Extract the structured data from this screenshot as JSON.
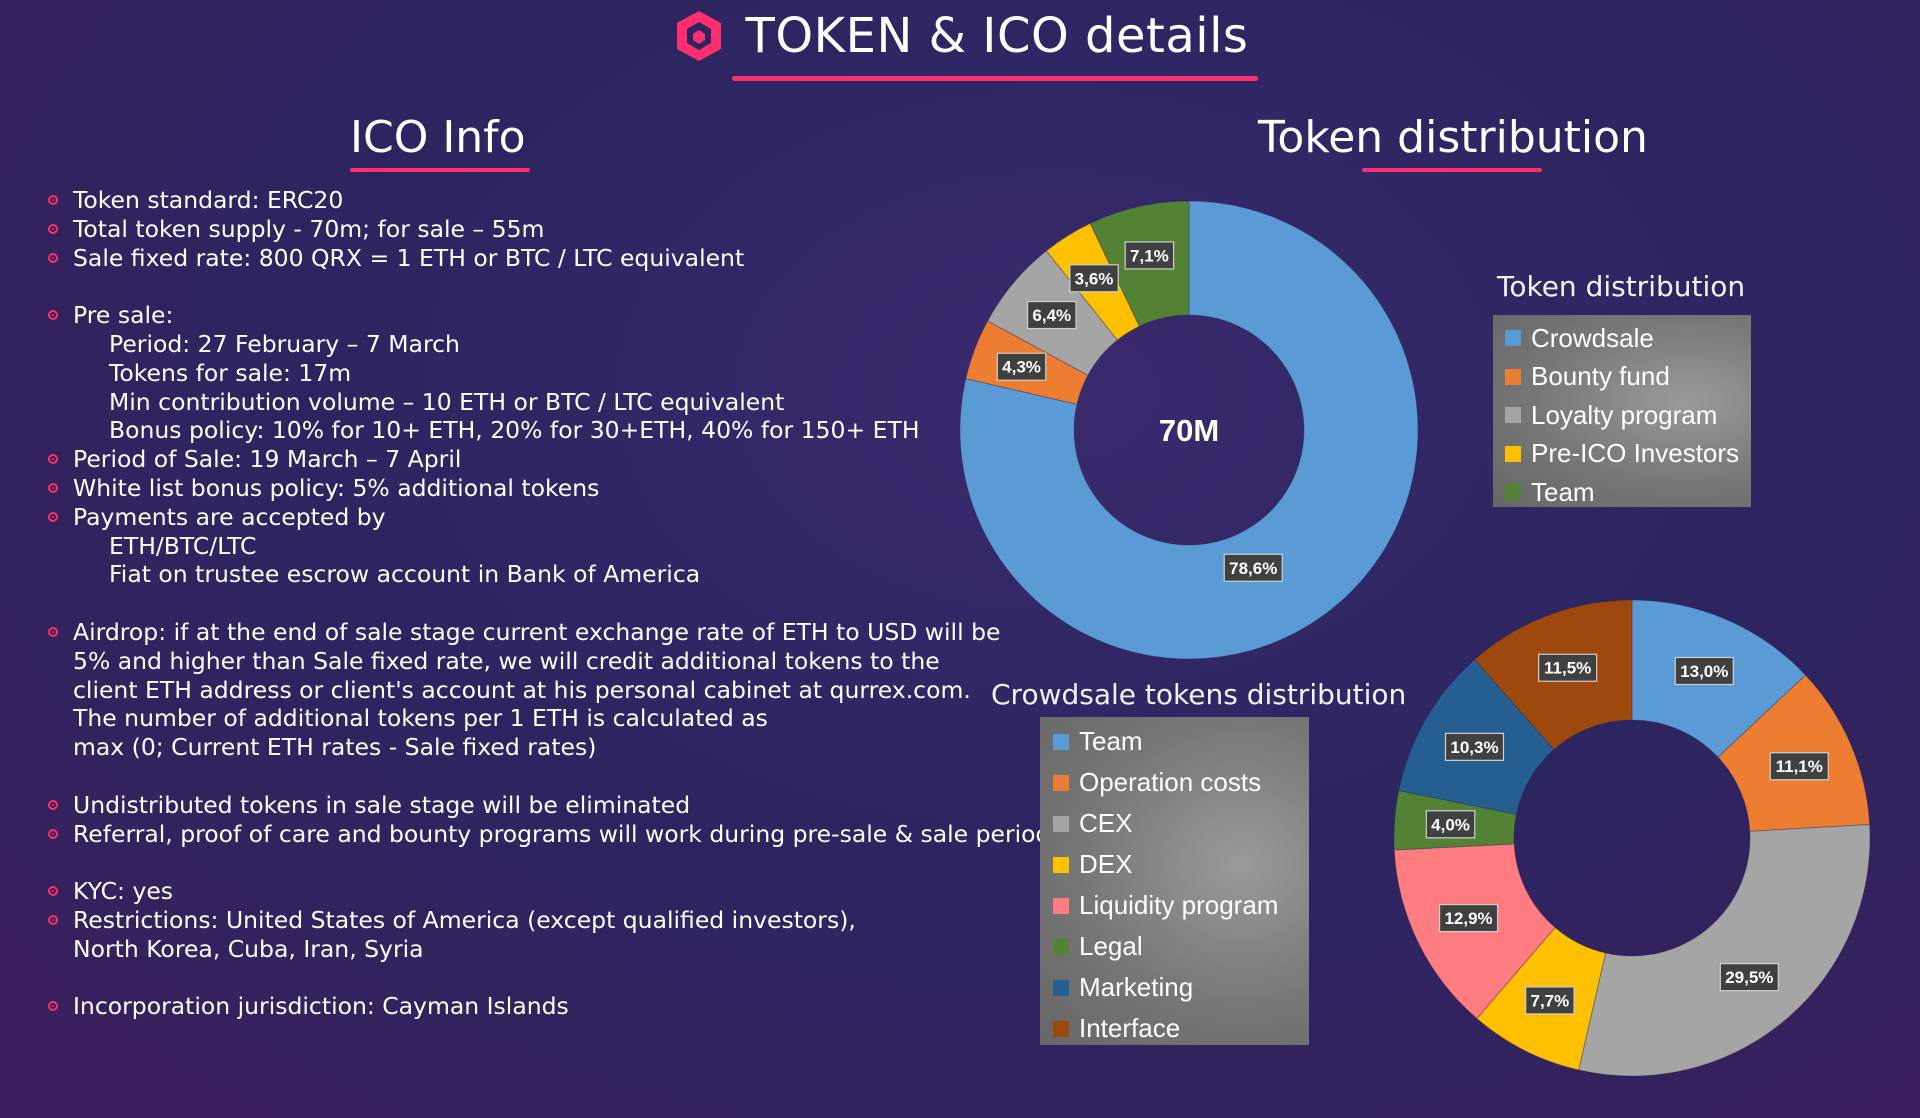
{
  "header": {
    "title": "TOKEN & ICO details"
  },
  "ico": {
    "title": "ICO Info",
    "items": [
      {
        "text": "Token standard: ERC20",
        "kind": "bullet"
      },
      {
        "text": "Total token supply - 70m; for sale – 55m",
        "kind": "bullet"
      },
      {
        "text": "Sale fixed rate: 800 QRX = 1 ETH or BTC / LTC equivalent",
        "kind": "bullet"
      },
      {
        "text": "Pre sale:",
        "kind": "bullet",
        "gap": true
      },
      {
        "text": "Period: 27 February – 7 March",
        "kind": "sub"
      },
      {
        "text": "Tokens for sale: 17m",
        "kind": "sub"
      },
      {
        "text": "Min contribution volume – 10 ETH or BTC / LTC equivalent",
        "kind": "sub"
      },
      {
        "text": "Bonus policy: 10% for 10+ ETH, 20% for 30+ETH, 40% for 150+ ETH",
        "kind": "sub"
      },
      {
        "text": "Period of Sale: 19 March – 7 April",
        "kind": "bullet"
      },
      {
        "text": "White list bonus policy: 5% additional tokens",
        "kind": "bullet"
      },
      {
        "text": "Payments are accepted by",
        "kind": "bullet"
      },
      {
        "text": "ETH/BTC/LTC",
        "kind": "sub"
      },
      {
        "text": "Fiat on trustee escrow account in Bank of America",
        "kind": "sub"
      },
      {
        "text": "Airdrop: if at the end of sale stage current exchange rate of ETH to USD will be",
        "kind": "bullet",
        "gap": true
      },
      {
        "text": "5% and higher than Sale fixed rate, we will credit additional tokens to the",
        "kind": "cont"
      },
      {
        "text": "client ETH address or client's account at his personal cabinet at qurrex.com.",
        "kind": "cont"
      },
      {
        "text": "The number of additional tokens per 1 ETH is calculated as",
        "kind": "cont"
      },
      {
        "text": "max (0; Current ETH rates - Sale fixed rates)",
        "kind": "cont"
      },
      {
        "text": "Undistributed tokens in sale stage will be eliminated",
        "kind": "bullet",
        "gap": true
      },
      {
        "text": "Referral, proof of care and bounty programs will work during pre-sale & sale period",
        "kind": "bullet"
      },
      {
        "text": "KYC: yes",
        "kind": "bullet",
        "gap": true
      },
      {
        "text": "Restrictions: United States of America (except qualified investors),",
        "kind": "bullet"
      },
      {
        "text": "North Korea, Cuba, Iran, Syria",
        "kind": "cont"
      },
      {
        "text": "Incorporation jurisdiction: Cayman Islands",
        "kind": "bullet",
        "gap": true
      }
    ]
  },
  "distribution": {
    "title": "Token distribution"
  },
  "chart_data": [
    {
      "type": "donut",
      "title": "Token distribution",
      "center_label": "70M",
      "legend_position": "right",
      "categories": [
        "Crowdsale",
        "Bounty fund",
        "Loyalty program",
        "Pre-ICO Investors",
        "Team"
      ],
      "values": [
        78.6,
        4.3,
        6.4,
        3.6,
        7.1
      ],
      "labels": [
        "78,6%",
        "4,3%",
        "6,4%",
        "3,6%",
        "7,1%"
      ],
      "colors": [
        "#5b9bd5",
        "#ed7d31",
        "#a5a5a5",
        "#ffc000",
        "#548235"
      ]
    },
    {
      "type": "donut",
      "title": "Crowdsale tokens distribution",
      "legend_position": "left",
      "categories": [
        "Team",
        "Operation costs",
        "CEX",
        "DEX",
        "Liquidity program",
        "Legal",
        "Marketing",
        "Interface"
      ],
      "values": [
        13.0,
        11.1,
        29.5,
        7.7,
        12.9,
        4.0,
        10.3,
        11.5
      ],
      "labels": [
        "13,0%",
        "11,1%",
        "29,5%",
        "7,7%",
        "12,9%",
        "4,0%",
        "10,3%",
        "11,5%"
      ],
      "colors": [
        "#5b9bd5",
        "#ed7d31",
        "#a5a5a5",
        "#ffc000",
        "#ff7c80",
        "#548235",
        "#255e91",
        "#9e480e"
      ]
    }
  ]
}
